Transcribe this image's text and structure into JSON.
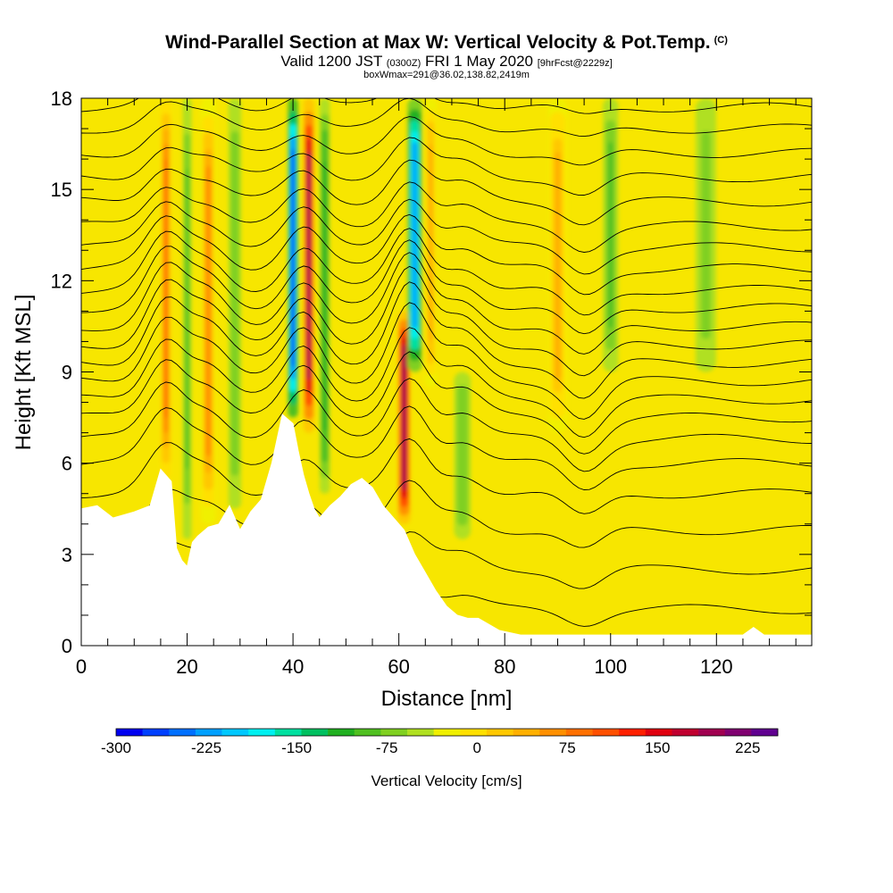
{
  "header": {
    "title": "Wind-Parallel Section at Max W: Vertical Velocity & Pot.Temp.",
    "copyright": "(C)",
    "valid_prefix": "Valid 1200 JST",
    "valid_utc": "(0300Z)",
    "valid_date": "FRI 1 May 2020",
    "forecast": "[9hrFcst@2229z]",
    "box_info": "boxWmax=291@36.02,138.82,2419m"
  },
  "chart_data": {
    "type": "heatmap",
    "xlabel": "Distance [nm]",
    "ylabel": "Height [Kft MSL]",
    "xlim": [
      0,
      138
    ],
    "ylim": [
      0,
      18
    ],
    "xticks": [
      "0",
      "20",
      "40",
      "60",
      "80",
      "100",
      "120"
    ],
    "yticks": [
      "0",
      "3",
      "6",
      "9",
      "12",
      "15",
      "18"
    ],
    "colorbar": {
      "label": "Vertical Velocity [cm/s]",
      "range": [
        -300,
        250
      ],
      "step": 25,
      "tick_labels": [
        "-300",
        "-225",
        "-150",
        "-75",
        "0",
        "75",
        "150",
        "225"
      ],
      "colors": [
        "#0000f0",
        "#0040ff",
        "#0070ff",
        "#00a0ff",
        "#00c8ff",
        "#00f0f0",
        "#00e0a0",
        "#00c060",
        "#20b020",
        "#50c020",
        "#80d020",
        "#b0e020",
        "#f0f000",
        "#ffe000",
        "#ffc800",
        "#ffb000",
        "#ff9000",
        "#ff7000",
        "#ff5000",
        "#ff2000",
        "#e00010",
        "#c00030",
        "#a00050",
        "#800070",
        "#600090"
      ]
    },
    "terrain": [
      [
        0,
        4.5
      ],
      [
        3,
        4.6
      ],
      [
        6,
        4.2
      ],
      [
        10,
        4.4
      ],
      [
        13,
        4.6
      ],
      [
        15,
        5.8
      ],
      [
        17,
        5.4
      ],
      [
        18,
        3.2
      ],
      [
        19,
        2.8
      ],
      [
        20,
        2.6
      ],
      [
        21,
        3.4
      ],
      [
        22,
        3.6
      ],
      [
        24,
        3.9
      ],
      [
        26,
        4.0
      ],
      [
        28,
        4.6
      ],
      [
        30,
        3.8
      ],
      [
        32,
        4.4
      ],
      [
        34,
        4.8
      ],
      [
        36,
        6.0
      ],
      [
        37,
        6.8
      ],
      [
        38,
        7.6
      ],
      [
        40,
        7.3
      ],
      [
        41,
        6.4
      ],
      [
        42,
        5.6
      ],
      [
        43,
        5.0
      ],
      [
        44,
        4.5
      ],
      [
        45,
        4.2
      ],
      [
        47,
        4.6
      ],
      [
        49,
        4.9
      ],
      [
        51,
        5.3
      ],
      [
        53,
        5.5
      ],
      [
        55,
        5.2
      ],
      [
        57,
        4.6
      ],
      [
        59,
        4.2
      ],
      [
        61,
        3.8
      ],
      [
        63,
        3.0
      ],
      [
        65,
        2.4
      ],
      [
        67,
        1.8
      ],
      [
        69,
        1.3
      ],
      [
        71,
        1.0
      ],
      [
        73,
        0.9
      ],
      [
        75,
        0.9
      ],
      [
        77,
        0.7
      ],
      [
        79,
        0.5
      ],
      [
        83,
        0.35
      ],
      [
        88,
        0.35
      ],
      [
        100,
        0.35
      ],
      [
        110,
        0.35
      ],
      [
        120,
        0.35
      ],
      [
        125,
        0.35
      ],
      [
        127,
        0.6
      ],
      [
        129,
        0.35
      ],
      [
        138,
        0.35
      ]
    ],
    "updraft_columns": [
      {
        "x": 16,
        "w": 1.6,
        "z0": 5.5,
        "z1": 18,
        "value": 130
      },
      {
        "x": 20,
        "w": 1.4,
        "z0": 3.5,
        "z1": 18,
        "value": -60
      },
      {
        "x": 24,
        "w": 2.4,
        "z0": 4.0,
        "z1": 18,
        "value": 100
      },
      {
        "x": 29,
        "w": 2.0,
        "z0": 4.5,
        "z1": 18,
        "value": -50
      },
      {
        "x": 40,
        "w": 1.6,
        "z0": 7.5,
        "z1": 18,
        "value": -260
      },
      {
        "x": 43,
        "w": 1.7,
        "z0": 7.0,
        "z1": 18,
        "value": 250
      },
      {
        "x": 46,
        "w": 1.6,
        "z0": 5.0,
        "z1": 18,
        "value": -90
      },
      {
        "x": 61,
        "w": 2.0,
        "z0": 4.0,
        "z1": 11.0,
        "value": 260
      },
      {
        "x": 63,
        "w": 2.3,
        "z0": 9.0,
        "z1": 18,
        "value": -210
      },
      {
        "x": 66,
        "w": 1.8,
        "z0": 8.5,
        "z1": 18,
        "value": 90
      },
      {
        "x": 72,
        "w": 2.6,
        "z0": 3.5,
        "z1": 9.0,
        "value": -45
      },
      {
        "x": 90,
        "w": 3.0,
        "z0": 7.0,
        "z1": 18,
        "value": 80
      },
      {
        "x": 100,
        "w": 2.4,
        "z0": 9.0,
        "z1": 18,
        "value": -55
      },
      {
        "x": 118,
        "w": 3.2,
        "z0": 9.0,
        "z1": 18,
        "value": -35
      }
    ],
    "isentrope_levels": [
      1.2,
      2.5,
      3.8,
      5.0,
      6.0,
      6.8,
      7.5,
      8.1,
      8.7,
      9.3,
      9.9,
      10.5,
      11.1,
      11.7,
      12.4,
      13.1,
      13.8,
      14.6,
      15.4,
      16.2,
      17.0,
      17.7
    ]
  }
}
